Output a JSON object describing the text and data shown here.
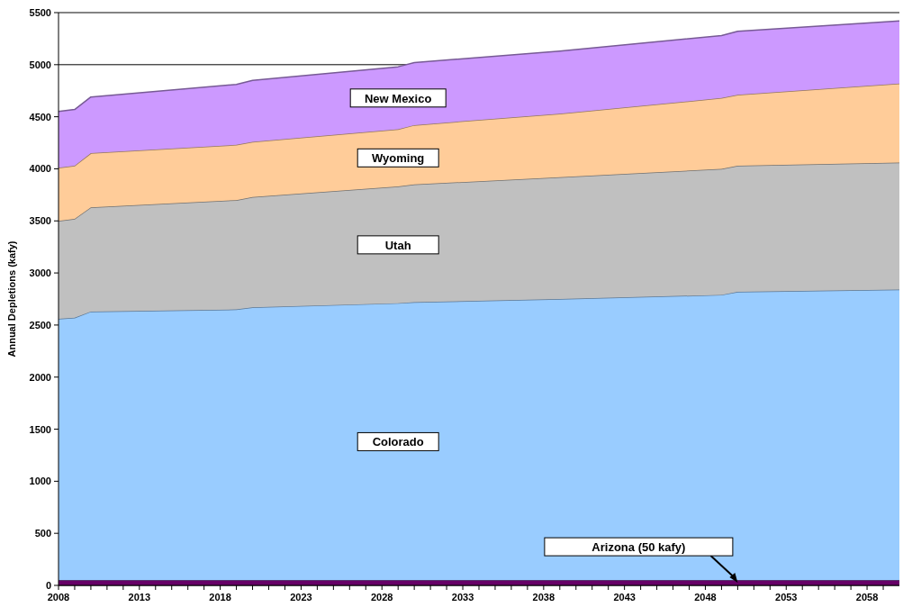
{
  "chart_data": {
    "type": "area",
    "stacked": true,
    "ylabel": "Annual Depletions (kafy)",
    "x": [
      2008,
      2009,
      2010,
      2019,
      2020,
      2029,
      2030,
      2039,
      2049,
      2050,
      2060
    ],
    "series": [
      {
        "name": "Arizona (50 kafy)",
        "color": "#660066",
        "values": [
          50,
          50,
          50,
          50,
          50,
          50,
          50,
          50,
          50,
          50,
          50
        ]
      },
      {
        "name": "Colorado",
        "color": "#99ccff",
        "values": [
          2510,
          2520,
          2580,
          2600,
          2620,
          2660,
          2670,
          2700,
          2740,
          2770,
          2790
        ]
      },
      {
        "name": "Utah",
        "color": "#c0c0c0",
        "values": [
          940,
          950,
          1000,
          1050,
          1060,
          1120,
          1130,
          1170,
          1210,
          1210,
          1220
        ]
      },
      {
        "name": "Wyoming",
        "color": "#ffcc99",
        "values": [
          510,
          510,
          520,
          530,
          530,
          550,
          570,
          610,
          680,
          680,
          760
        ]
      },
      {
        "name": "New Mexico",
        "color": "#cc99ff",
        "values": [
          540,
          540,
          540,
          580,
          590,
          600,
          600,
          600,
          600,
          610,
          600
        ]
      }
    ],
    "xlim": [
      2008,
      2060
    ],
    "ylim": [
      0,
      5500
    ],
    "yticks": [
      0,
      500,
      1000,
      1500,
      2000,
      2500,
      3000,
      3500,
      4000,
      4500,
      5000,
      5500
    ],
    "xticks": [
      2008,
      {
        "value": 2009,
        "label": null
      },
      {
        "value": 2010,
        "label": null
      },
      {
        "value": 2011,
        "label": null
      },
      {
        "value": 2012,
        "label": null
      },
      2013,
      {
        "value": 2014,
        "label": null
      },
      {
        "value": 2015,
        "label": null
      },
      {
        "value": 2016,
        "label": null
      },
      {
        "value": 2017,
        "label": null
      },
      2018,
      {
        "value": 2019,
        "label": null
      },
      {
        "value": 2020,
        "label": null
      },
      {
        "value": 2021,
        "label": null
      },
      {
        "value": 2022,
        "label": null
      },
      2023,
      {
        "value": 2024,
        "label": null
      },
      {
        "value": 2025,
        "label": null
      },
      {
        "value": 2026,
        "label": null
      },
      {
        "value": 2027,
        "label": null
      },
      2028,
      {
        "value": 2029,
        "label": null
      },
      {
        "value": 2030,
        "label": null
      },
      {
        "value": 2031,
        "label": null
      },
      {
        "value": 2032,
        "label": null
      },
      2033,
      {
        "value": 2034,
        "label": null
      },
      {
        "value": 2035,
        "label": null
      },
      {
        "value": 2036,
        "label": null
      },
      {
        "value": 2037,
        "label": null
      },
      2038,
      {
        "value": 2039,
        "label": null
      },
      {
        "value": 2040,
        "label": null
      },
      {
        "value": 2041,
        "label": null
      },
      {
        "value": 2042,
        "label": null
      },
      2043,
      {
        "value": 2044,
        "label": null
      },
      {
        "value": 2045,
        "label": null
      },
      {
        "value": 2046,
        "label": null
      },
      {
        "value": 2047,
        "label": null
      },
      2048,
      {
        "value": 2049,
        "label": null
      },
      {
        "value": 2050,
        "label": null
      },
      {
        "value": 2051,
        "label": null
      },
      {
        "value": 2052,
        "label": null
      },
      2053,
      {
        "value": 2054,
        "label": null
      },
      {
        "value": 2055,
        "label": null
      },
      {
        "value": 2056,
        "label": null
      },
      {
        "value": 2057,
        "label": null
      },
      2058,
      {
        "value": 2059,
        "label": null
      }
    ],
    "grid": "y"
  }
}
